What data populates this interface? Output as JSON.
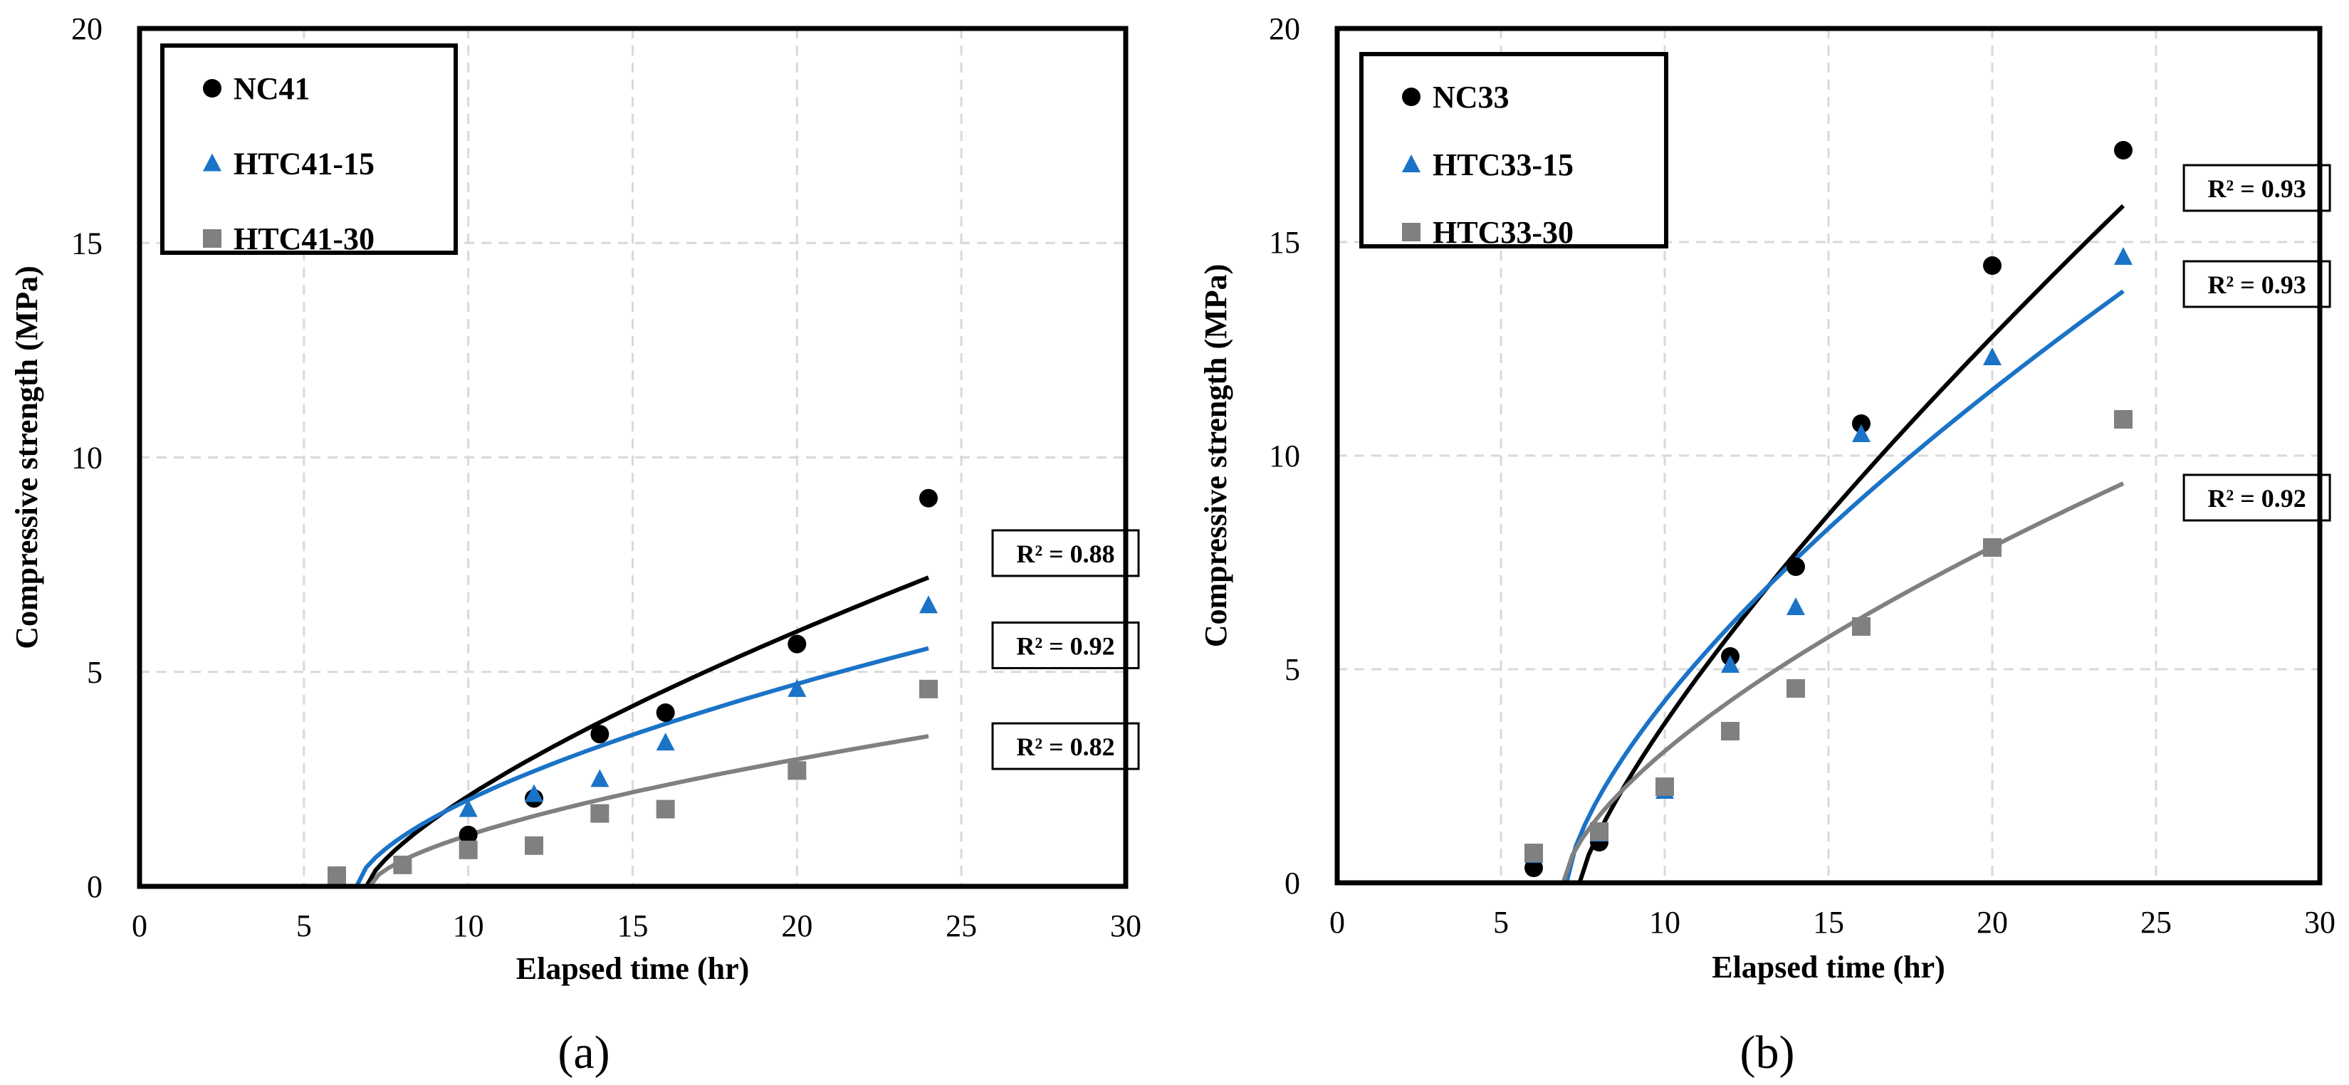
{
  "chart_data": [
    {
      "type": "scatter",
      "panel_label": "(a)",
      "xlabel": "Elapsed time (hr)",
      "ylabel": "Compressive strength (MPa)",
      "xlim": [
        0,
        30
      ],
      "ylim": [
        0,
        20
      ],
      "xticks": [
        0,
        5,
        10,
        15,
        20,
        25,
        30
      ],
      "yticks": [
        0,
        5,
        10,
        15,
        20
      ],
      "grid": true,
      "legend_position": "top-left",
      "series": [
        {
          "name": "NC41",
          "marker": "circle",
          "color": "#000000",
          "x": [
            6,
            10,
            12,
            14,
            16,
            20,
            24
          ],
          "y": [
            0.25,
            1.2,
            2.05,
            3.55,
            4.05,
            5.65,
            9.05
          ],
          "fit": {
            "x0": 6.9,
            "x1": 24,
            "y1": 7.2,
            "p": 0.72
          },
          "r2": "R² = 0.88",
          "r2_anchor": [
            25.95,
            8.3
          ]
        },
        {
          "name": "HTC41-15",
          "marker": "triangle",
          "color": "#1a73c7",
          "x": [
            6,
            10,
            12,
            14,
            16,
            20,
            24
          ],
          "y": [
            0.25,
            1.8,
            2.15,
            2.5,
            3.35,
            4.6,
            6.55
          ],
          "fit": {
            "x0": 6.6,
            "x1": 24,
            "y1": 5.55,
            "p": 0.62
          },
          "r2": "R² = 0.92",
          "r2_anchor": [
            25.95,
            6.15
          ]
        },
        {
          "name": "HTC41-30",
          "marker": "square",
          "color": "#808080",
          "x": [
            6,
            8,
            10,
            12,
            14,
            16,
            20,
            24
          ],
          "y": [
            0.25,
            0.5,
            0.85,
            0.95,
            1.7,
            1.8,
            2.7,
            4.6
          ],
          "fit": {
            "x0": 7.0,
            "x1": 24,
            "y1": 3.5,
            "p": 0.62
          },
          "r2": "R² = 0.82",
          "r2_anchor": [
            25.95,
            3.8
          ]
        }
      ]
    },
    {
      "type": "scatter",
      "panel_label": "(b)",
      "xlabel": "Elapsed time (hr)",
      "ylabel": "Compressive strength (MPa)",
      "xlim": [
        0,
        30
      ],
      "ylim": [
        0,
        20
      ],
      "xticks": [
        0,
        5,
        10,
        15,
        20,
        25,
        30
      ],
      "yticks": [
        0,
        5,
        10,
        15,
        20
      ],
      "grid": true,
      "legend_position": "top-left",
      "series": [
        {
          "name": "NC33",
          "marker": "circle",
          "color": "#000000",
          "x": [
            6,
            8,
            12,
            14,
            16,
            20,
            24
          ],
          "y": [
            0.35,
            0.95,
            5.3,
            7.4,
            10.75,
            14.45,
            17.15
          ],
          "fit": {
            "x0": 7.4,
            "x1": 24,
            "y1": 15.85,
            "p": 0.78
          },
          "r2": "R² = 0.93",
          "r2_anchor": [
            25.85,
            16.8
          ]
        },
        {
          "name": "HTC33-15",
          "marker": "triangle",
          "color": "#1a73c7",
          "x": [
            6,
            8,
            10,
            12,
            14,
            16,
            20,
            24
          ],
          "y": [
            0.65,
            1.15,
            2.15,
            5.1,
            6.45,
            10.5,
            12.3,
            14.65
          ],
          "fit": {
            "x0": 7.0,
            "x1": 24,
            "y1": 13.85,
            "p": 0.68
          },
          "r2": "R² = 0.93",
          "r2_anchor": [
            25.85,
            14.55
          ]
        },
        {
          "name": "HTC33-30",
          "marker": "square",
          "color": "#808080",
          "x": [
            6,
            8,
            10,
            12,
            14,
            16,
            20,
            24
          ],
          "y": [
            0.7,
            1.2,
            2.25,
            3.55,
            4.55,
            6.0,
            7.85,
            10.85
          ],
          "fit": {
            "x0": 6.9,
            "x1": 24,
            "y1": 9.35,
            "p": 0.65
          },
          "r2": "R² = 0.92",
          "r2_anchor": [
            25.85,
            9.55
          ]
        }
      ]
    }
  ]
}
